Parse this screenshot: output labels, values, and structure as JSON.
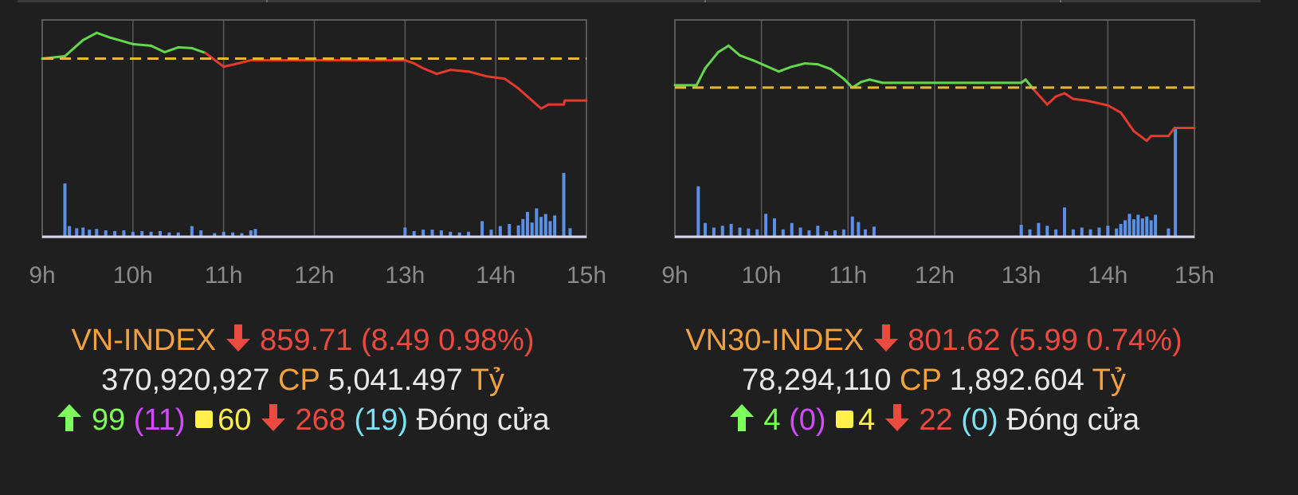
{
  "colors": {
    "up": "#63d84a",
    "down": "#e5392e",
    "reference": "#e8b73a",
    "volume": "#5c8fe6",
    "grid": "#5a5a5a",
    "tick_label": "#8a8a8a"
  },
  "panels": [
    {
      "id": "vn",
      "info": {
        "name": "VN-INDEX",
        "value": "859.71",
        "change": "(8.49 0.98%)",
        "volume": "370,920,927",
        "volume_unit": "CP",
        "turnover": "5,041.497",
        "turnover_unit": "Tỷ",
        "advancers": "99",
        "advancers_ceiling": "(11)",
        "unchanged": "60",
        "decliners": "268",
        "decliners_floor": "(19)",
        "status": "Đóng cửa"
      },
      "chart_data": {
        "type": "line",
        "x_ticks": [
          "9h",
          "10h",
          "11h",
          "12h",
          "13h",
          "14h",
          "15h"
        ],
        "x_range": [
          9,
          15
        ],
        "y_range": [
          846,
          873
        ],
        "reference": 868.2,
        "price_series": [
          [
            9.0,
            868.2
          ],
          [
            9.25,
            868.5
          ],
          [
            9.45,
            870.5
          ],
          [
            9.6,
            871.4
          ],
          [
            9.75,
            870.8
          ],
          [
            10.0,
            870.0
          ],
          [
            10.2,
            869.8
          ],
          [
            10.35,
            869.0
          ],
          [
            10.5,
            869.6
          ],
          [
            10.65,
            869.5
          ],
          [
            10.8,
            868.9
          ],
          [
            11.0,
            867.2
          ],
          [
            11.12,
            867.5
          ],
          [
            11.3,
            868.0
          ],
          [
            11.5,
            868.0
          ],
          [
            12.0,
            868.0
          ],
          [
            12.5,
            868.0
          ],
          [
            13.0,
            868.0
          ],
          [
            13.1,
            867.6
          ],
          [
            13.2,
            867.0
          ],
          [
            13.35,
            866.3
          ],
          [
            13.5,
            866.8
          ],
          [
            13.7,
            866.6
          ],
          [
            13.9,
            866.0
          ],
          [
            14.1,
            865.7
          ],
          [
            14.25,
            864.5
          ],
          [
            14.4,
            863.0
          ],
          [
            14.5,
            862.0
          ],
          [
            14.58,
            862.5
          ],
          [
            14.75,
            862.5
          ],
          [
            14.76,
            863.0
          ],
          [
            15.0,
            863.0
          ]
        ],
        "volume_bars": [
          [
            9.25,
            7.5
          ],
          [
            9.3,
            1.5
          ],
          [
            9.38,
            1.2
          ],
          [
            9.45,
            1.3
          ],
          [
            9.52,
            1.0
          ],
          [
            9.6,
            1.1
          ],
          [
            9.7,
            0.9
          ],
          [
            9.8,
            0.8
          ],
          [
            9.9,
            0.9
          ],
          [
            10.0,
            0.7
          ],
          [
            10.1,
            0.8
          ],
          [
            10.2,
            0.7
          ],
          [
            10.3,
            0.8
          ],
          [
            10.4,
            0.6
          ],
          [
            10.5,
            0.6
          ],
          [
            10.65,
            1.5
          ],
          [
            10.75,
            0.9
          ],
          [
            10.9,
            0.5
          ],
          [
            11.0,
            0.7
          ],
          [
            11.1,
            0.6
          ],
          [
            11.2,
            0.5
          ],
          [
            11.3,
            0.9
          ],
          [
            11.35,
            1.1
          ],
          [
            13.0,
            1.3
          ],
          [
            13.1,
            0.8
          ],
          [
            13.2,
            1.0
          ],
          [
            13.3,
            1.0
          ],
          [
            13.4,
            0.9
          ],
          [
            13.5,
            0.7
          ],
          [
            13.6,
            0.6
          ],
          [
            13.7,
            0.7
          ],
          [
            13.85,
            2.2
          ],
          [
            13.95,
            1.0
          ],
          [
            14.05,
            1.5
          ],
          [
            14.15,
            1.8
          ],
          [
            14.25,
            1.6
          ],
          [
            14.3,
            2.5
          ],
          [
            14.35,
            3.5
          ],
          [
            14.4,
            2.0
          ],
          [
            14.45,
            4.0
          ],
          [
            14.5,
            2.8
          ],
          [
            14.55,
            3.2
          ],
          [
            14.6,
            2.2
          ],
          [
            14.65,
            3.0
          ],
          [
            14.75,
            9.0
          ],
          [
            14.82,
            1.2
          ]
        ]
      }
    },
    {
      "id": "vn30",
      "info": {
        "name": "VN30-INDEX",
        "value": "801.62",
        "change": "(5.99 0.74%)",
        "volume": "78,294,110",
        "volume_unit": "CP",
        "turnover": "1,892.604",
        "turnover_unit": "Tỷ",
        "advancers": "4",
        "advancers_ceiling": "(0)",
        "unchanged": "4",
        "decliners": "22",
        "decliners_floor": "(0)",
        "status": "Đóng cửa"
      },
      "chart_data": {
        "type": "line",
        "x_ticks": [
          "9h",
          "10h",
          "11h",
          "12h",
          "13h",
          "14h",
          "15h"
        ],
        "x_range": [
          9,
          15
        ],
        "y_range": [
          789,
          816
        ],
        "reference": 807.61,
        "price_series": [
          [
            9.0,
            807.9
          ],
          [
            9.25,
            807.9
          ],
          [
            9.35,
            810.0
          ],
          [
            9.5,
            812.0
          ],
          [
            9.62,
            812.8
          ],
          [
            9.75,
            811.6
          ],
          [
            9.9,
            811.0
          ],
          [
            10.05,
            810.3
          ],
          [
            10.2,
            809.6
          ],
          [
            10.35,
            810.2
          ],
          [
            10.5,
            810.6
          ],
          [
            10.65,
            810.5
          ],
          [
            10.8,
            809.9
          ],
          [
            10.95,
            808.7
          ],
          [
            11.05,
            807.6
          ],
          [
            11.15,
            808.3
          ],
          [
            11.25,
            808.6
          ],
          [
            11.4,
            808.2
          ],
          [
            11.5,
            808.2
          ],
          [
            12.0,
            808.2
          ],
          [
            12.5,
            808.2
          ],
          [
            13.0,
            808.2
          ],
          [
            13.05,
            808.6
          ],
          [
            13.15,
            807.3
          ],
          [
            13.3,
            805.5
          ],
          [
            13.4,
            806.5
          ],
          [
            13.5,
            806.9
          ],
          [
            13.6,
            806.2
          ],
          [
            13.75,
            806.0
          ],
          [
            14.0,
            805.4
          ],
          [
            14.15,
            804.5
          ],
          [
            14.3,
            802.2
          ],
          [
            14.45,
            801.0
          ],
          [
            14.5,
            801.6
          ],
          [
            14.7,
            801.6
          ],
          [
            14.77,
            802.6
          ],
          [
            15.0,
            802.6
          ]
        ],
        "volume_bars": [
          [
            9.27,
            5.5
          ],
          [
            9.35,
            1.5
          ],
          [
            9.45,
            1.0
          ],
          [
            9.55,
            1.2
          ],
          [
            9.65,
            1.4
          ],
          [
            9.75,
            1.0
          ],
          [
            9.85,
            0.9
          ],
          [
            9.95,
            0.8
          ],
          [
            10.05,
            2.5
          ],
          [
            10.15,
            2.0
          ],
          [
            10.25,
            0.8
          ],
          [
            10.35,
            1.5
          ],
          [
            10.45,
            1.0
          ],
          [
            10.55,
            0.7
          ],
          [
            10.65,
            1.2
          ],
          [
            10.75,
            0.6
          ],
          [
            10.85,
            0.7
          ],
          [
            10.95,
            0.8
          ],
          [
            11.05,
            2.2
          ],
          [
            11.12,
            1.6
          ],
          [
            11.2,
            0.8
          ],
          [
            11.3,
            1.1
          ],
          [
            13.0,
            1.3
          ],
          [
            13.1,
            0.8
          ],
          [
            13.2,
            1.5
          ],
          [
            13.3,
            1.2
          ],
          [
            13.4,
            0.8
          ],
          [
            13.5,
            3.2
          ],
          [
            13.6,
            0.8
          ],
          [
            13.7,
            1.0
          ],
          [
            13.8,
            0.8
          ],
          [
            13.9,
            1.0
          ],
          [
            14.0,
            1.2
          ],
          [
            14.1,
            0.9
          ],
          [
            14.15,
            1.4
          ],
          [
            14.2,
            1.8
          ],
          [
            14.25,
            2.5
          ],
          [
            14.3,
            1.9
          ],
          [
            14.35,
            2.4
          ],
          [
            14.4,
            2.0
          ],
          [
            14.45,
            2.2
          ],
          [
            14.5,
            1.8
          ],
          [
            14.55,
            2.4
          ],
          [
            14.7,
            0.9
          ],
          [
            14.78,
            12.0
          ]
        ]
      }
    }
  ]
}
